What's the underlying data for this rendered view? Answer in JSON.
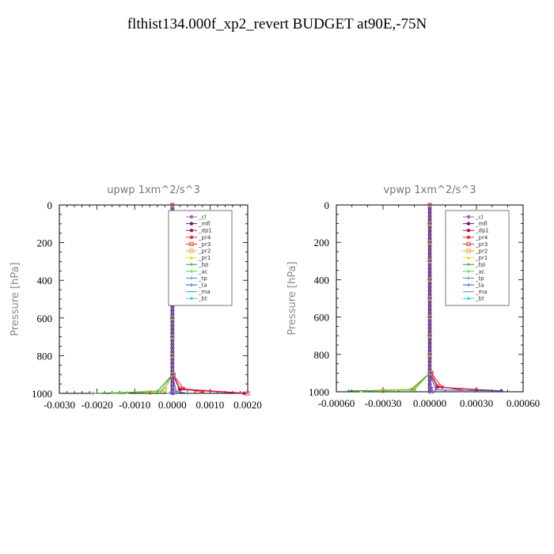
{
  "title": "flthist134.000f_xp2_revert  BUDGET at90E,-75N",
  "legend_names": [
    "_cl",
    "_mfl",
    "_dp1",
    "_pr4",
    "_pr3",
    "_pr2",
    "_pr1",
    "_bp",
    "_ac",
    "_tp",
    "_ta",
    "_ma",
    "_bt"
  ],
  "legend_colors": [
    "#9a5fc7",
    "#6b1f5a",
    "#c0104a",
    "#d33a3a",
    "#e8302a",
    "#f0a020",
    "#e8d840",
    "#2a9a2a",
    "#58d040",
    "#3a8ad8",
    "#3050d0",
    "#50a0b0",
    "#20d8e8"
  ],
  "chart_data": [
    {
      "type": "line",
      "title": "upwp   1xm^2/s^3",
      "ylabel": "Pressure  [hPa]",
      "xlim": [
        -0.003,
        0.002
      ],
      "ylim": [
        1000,
        0
      ],
      "x_ticks": [
        "-0.0030",
        "-0.0020",
        "-0.0010",
        "0.0000",
        "0.0010",
        "0.0020"
      ],
      "x_tick_values": [
        -0.003,
        -0.002,
        -0.001,
        0.0,
        0.001,
        0.002
      ],
      "y_ticks": [
        "0",
        "200",
        "400",
        "600",
        "800",
        "1000"
      ],
      "y_tick_values": [
        0,
        200,
        400,
        600,
        800,
        1000
      ],
      "grid": false,
      "legend_position": "top-right",
      "series": [
        {
          "name": "_cl",
          "x": [
            0,
            0,
            0,
            0,
            0,
            0,
            0,
            0,
            0,
            0,
            2e-05,
            3e-05
          ],
          "y": [
            0,
            100,
            200,
            300,
            400,
            500,
            600,
            700,
            800,
            900,
            980,
            1000
          ]
        },
        {
          "name": "_mfl",
          "x": [
            0,
            0,
            0,
            0,
            0,
            0,
            0,
            0,
            0,
            0,
            0,
            0
          ],
          "y": [
            0,
            100,
            200,
            300,
            400,
            500,
            600,
            700,
            800,
            900,
            980,
            1000
          ]
        },
        {
          "name": "_dp1",
          "x": [
            0,
            0,
            0,
            0,
            0,
            0,
            0,
            0,
            0,
            0,
            0.0002,
            0.0019
          ],
          "y": [
            0,
            100,
            200,
            300,
            400,
            500,
            600,
            700,
            800,
            900,
            980,
            1000
          ]
        },
        {
          "name": "_pr4",
          "x": [
            0,
            0,
            0,
            0,
            0,
            0,
            0,
            0,
            0,
            2e-05,
            0.0003,
            0.0008
          ],
          "y": [
            0,
            100,
            200,
            300,
            400,
            500,
            600,
            700,
            800,
            900,
            975,
            995
          ]
        },
        {
          "name": "_pr3",
          "x": [
            0,
            0,
            0,
            0,
            0,
            0,
            0,
            0,
            0,
            3e-05,
            0.0002,
            0.002
          ],
          "y": [
            0,
            100,
            200,
            300,
            400,
            500,
            600,
            700,
            800,
            900,
            975,
            1000
          ]
        },
        {
          "name": "_pr2",
          "x": [
            0,
            0,
            0,
            0,
            0,
            0,
            0,
            0,
            0,
            0,
            -0.0002,
            -0.0006
          ],
          "y": [
            0,
            100,
            200,
            300,
            400,
            500,
            600,
            700,
            800,
            900,
            980,
            995
          ]
        },
        {
          "name": "_pr1",
          "x": [
            0,
            0,
            0,
            0,
            0,
            0,
            0,
            0,
            0,
            0,
            -0.0003,
            -0.0012
          ],
          "y": [
            0,
            100,
            200,
            300,
            400,
            500,
            600,
            700,
            800,
            900,
            985,
            995
          ]
        },
        {
          "name": "_bp",
          "x": [
            0,
            0,
            0,
            0,
            0,
            0,
            0,
            0,
            0,
            0,
            -0.0004,
            -0.0021
          ],
          "y": [
            0,
            100,
            200,
            300,
            400,
            500,
            600,
            700,
            800,
            900,
            990,
            1000
          ]
        },
        {
          "name": "_ac",
          "x": [
            0,
            0,
            0,
            0,
            0,
            0,
            0,
            0,
            0,
            0,
            -0.0003,
            -0.0016
          ],
          "y": [
            0,
            100,
            200,
            300,
            400,
            500,
            600,
            700,
            800,
            900,
            990,
            1000
          ]
        },
        {
          "name": "_tp",
          "x": [
            0,
            0,
            0,
            0,
            0,
            0,
            0,
            0,
            0,
            0,
            0,
            0
          ],
          "y": [
            0,
            100,
            200,
            300,
            400,
            500,
            600,
            700,
            800,
            900,
            980,
            1000
          ]
        },
        {
          "name": "_ta",
          "x": [
            0,
            0,
            0,
            0,
            0,
            0,
            0,
            0,
            0,
            0,
            0.0001,
            0.0004
          ],
          "y": [
            0,
            100,
            200,
            300,
            400,
            500,
            600,
            700,
            800,
            900,
            990,
            1000
          ]
        },
        {
          "name": "_ma",
          "x": [
            0,
            0,
            0,
            0,
            0,
            0,
            0,
            0,
            0,
            0,
            0,
            -0.0001
          ],
          "y": [
            0,
            100,
            200,
            300,
            400,
            500,
            600,
            700,
            800,
            900,
            980,
            1000
          ]
        },
        {
          "name": "_bt",
          "x": [
            0,
            0,
            0,
            0,
            0,
            0,
            0,
            0,
            0,
            0,
            0,
            0
          ],
          "y": [
            0,
            100,
            200,
            300,
            400,
            500,
            600,
            700,
            800,
            900,
            980,
            1000
          ]
        }
      ]
    },
    {
      "type": "line",
      "title": "vpwp   1xm^2/s^3",
      "ylabel": "Pressure  [hPa]",
      "xlim": [
        -0.0006,
        0.0006
      ],
      "ylim": [
        1000,
        0
      ],
      "x_ticks": [
        "-0.00060",
        "-0.00030",
        "0.00000",
        "0.00030",
        "0.00060"
      ],
      "x_tick_values": [
        -0.0006,
        -0.0003,
        0.0,
        0.0003,
        0.0006
      ],
      "y_ticks": [
        "0",
        "200",
        "400",
        "600",
        "800",
        "1000"
      ],
      "y_tick_values": [
        0,
        200,
        400,
        600,
        800,
        1000
      ],
      "grid": false,
      "legend_position": "top-right",
      "series": [
        {
          "name": "_cl",
          "x": [
            0,
            0,
            0,
            0,
            0,
            0,
            0,
            0,
            0,
            0,
            1e-05,
            2e-05
          ],
          "y": [
            0,
            100,
            200,
            300,
            400,
            500,
            600,
            700,
            800,
            900,
            980,
            1000
          ]
        },
        {
          "name": "_mfl",
          "x": [
            0,
            0,
            0,
            0,
            0,
            0,
            0,
            0,
            0,
            0,
            0,
            0
          ],
          "y": [
            0,
            100,
            200,
            300,
            400,
            500,
            600,
            700,
            800,
            900,
            980,
            1000
          ]
        },
        {
          "name": "_dp1",
          "x": [
            0,
            0,
            0,
            0,
            0,
            0,
            0,
            0,
            0,
            0,
            5e-05,
            0.00046
          ],
          "y": [
            0,
            100,
            200,
            300,
            400,
            500,
            600,
            700,
            800,
            900,
            975,
            995
          ]
        },
        {
          "name": "_pr4",
          "x": [
            0,
            0,
            0,
            0,
            0,
            0,
            0,
            0,
            0,
            1e-05,
            8e-05,
            0.0003
          ],
          "y": [
            0,
            100,
            200,
            300,
            400,
            500,
            600,
            700,
            800,
            900,
            975,
            990
          ]
        },
        {
          "name": "_pr3",
          "x": [
            0,
            0,
            0,
            0,
            0,
            0,
            0,
            0,
            0,
            1e-05,
            5e-05,
            0.0002
          ],
          "y": [
            0,
            100,
            200,
            300,
            400,
            500,
            600,
            700,
            800,
            900,
            970,
            990
          ]
        },
        {
          "name": "_pr2",
          "x": [
            0,
            0,
            0,
            0,
            0,
            0,
            0,
            0,
            0,
            0,
            -0.0001,
            -0.0003
          ],
          "y": [
            0,
            100,
            200,
            300,
            400,
            500,
            600,
            700,
            800,
            900,
            985,
            995
          ]
        },
        {
          "name": "_pr1",
          "x": [
            0,
            0,
            0,
            0,
            0,
            0,
            0,
            0,
            0,
            0,
            -0.00012,
            -0.00044
          ],
          "y": [
            0,
            100,
            200,
            300,
            400,
            500,
            600,
            700,
            800,
            900,
            985,
            995
          ]
        },
        {
          "name": "_bp",
          "x": [
            0,
            0,
            0,
            0,
            0,
            0,
            0,
            0,
            0,
            0,
            -0.00012,
            -0.00052
          ],
          "y": [
            0,
            100,
            200,
            300,
            400,
            500,
            600,
            700,
            800,
            900,
            990,
            995
          ]
        },
        {
          "name": "_ac",
          "x": [
            0,
            0,
            0,
            0,
            0,
            0,
            0,
            0,
            0,
            0,
            -0.0001,
            -0.0004
          ],
          "y": [
            0,
            100,
            200,
            300,
            400,
            500,
            600,
            700,
            800,
            900,
            990,
            995
          ]
        },
        {
          "name": "_tp",
          "x": [
            0,
            0,
            0,
            0,
            0,
            0,
            0,
            0,
            0,
            0,
            0,
            0
          ],
          "y": [
            0,
            100,
            200,
            300,
            400,
            500,
            600,
            700,
            800,
            900,
            980,
            1000
          ]
        },
        {
          "name": "_ta",
          "x": [
            0,
            0,
            0,
            0,
            0,
            0,
            0,
            0,
            0,
            0,
            4e-05,
            0.00046
          ],
          "y": [
            0,
            100,
            200,
            300,
            400,
            500,
            600,
            700,
            800,
            900,
            990,
            995
          ]
        },
        {
          "name": "_ma",
          "x": [
            0,
            0,
            0,
            0,
            0,
            0,
            0,
            0,
            0,
            0,
            0,
            0
          ],
          "y": [
            0,
            100,
            200,
            300,
            400,
            500,
            600,
            700,
            800,
            900,
            980,
            1000
          ]
        },
        {
          "name": "_bt",
          "x": [
            0,
            0,
            0,
            0,
            0,
            0,
            0,
            0,
            0,
            0,
            0,
            0
          ],
          "y": [
            0,
            100,
            200,
            300,
            400,
            500,
            600,
            700,
            800,
            900,
            980,
            1000
          ]
        }
      ]
    }
  ]
}
